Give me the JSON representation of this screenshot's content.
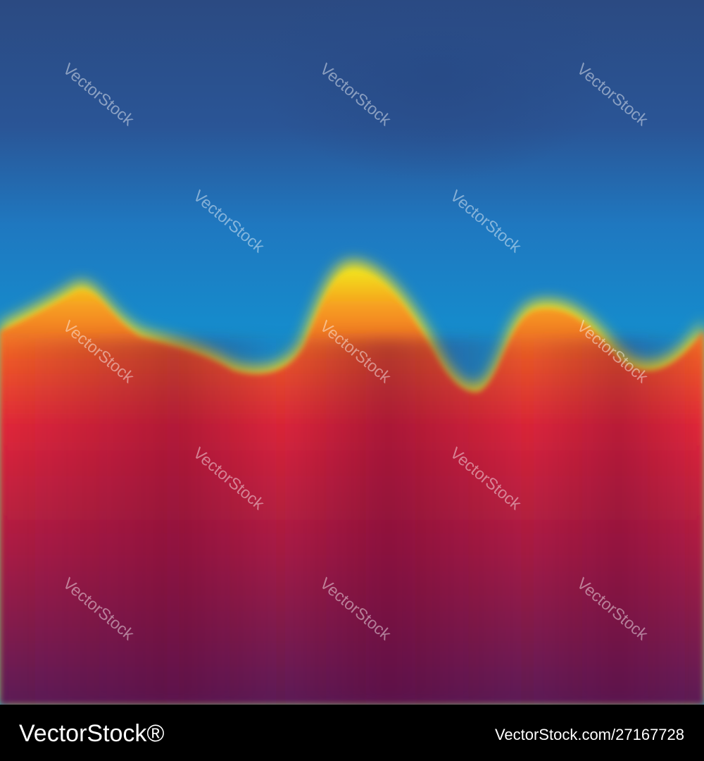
{
  "watermark": "VectorStock",
  "footer": {
    "brand": "VectorStock®",
    "link": "VectorStock.com/27167728"
  }
}
